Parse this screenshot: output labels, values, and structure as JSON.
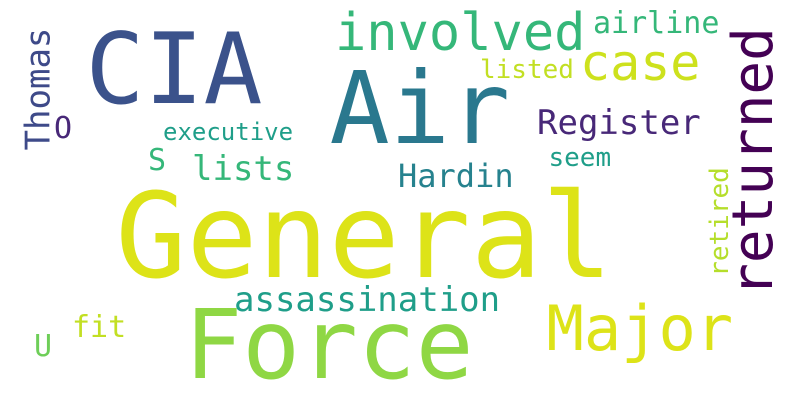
{
  "word_cloud": {
    "words": [
      {
        "id": "general",
        "text": "General",
        "color": "#dde318",
        "orientation": "horizontal"
      },
      {
        "id": "force",
        "text": "Force",
        "color": "#8fd744",
        "orientation": "horizontal"
      },
      {
        "id": "air",
        "text": "Air",
        "color": "#2a788e",
        "orientation": "horizontal"
      },
      {
        "id": "cia",
        "text": "CIA",
        "color": "#3b528b",
        "orientation": "horizontal"
      },
      {
        "id": "returned",
        "text": "returned",
        "color": "#440154",
        "orientation": "vertical"
      },
      {
        "id": "major",
        "text": "Major",
        "color": "#dde318",
        "orientation": "horizontal"
      },
      {
        "id": "involved",
        "text": "involved",
        "color": "#35b779",
        "orientation": "horizontal"
      },
      {
        "id": "case",
        "text": "case",
        "color": "#cde11d",
        "orientation": "horizontal"
      },
      {
        "id": "airline",
        "text": "airline",
        "color": "#35b779",
        "orientation": "horizontal"
      },
      {
        "id": "listed",
        "text": "listed",
        "color": "#c2df23",
        "orientation": "horizontal"
      },
      {
        "id": "thomas",
        "text": "Thomas",
        "color": "#3e4a89",
        "orientation": "vertical"
      },
      {
        "id": "register",
        "text": "Register",
        "color": "#482878",
        "orientation": "horizontal"
      },
      {
        "id": "o",
        "text": "O",
        "color": "#482878",
        "orientation": "horizontal"
      },
      {
        "id": "executive",
        "text": "executive",
        "color": "#1f9e89",
        "orientation": "horizontal"
      },
      {
        "id": "s",
        "text": "S",
        "color": "#35b779",
        "orientation": "horizontal"
      },
      {
        "id": "lists",
        "text": "lists",
        "color": "#35b779",
        "orientation": "horizontal"
      },
      {
        "id": "seem",
        "text": "seem",
        "color": "#1f9e89",
        "orientation": "horizontal"
      },
      {
        "id": "hardin",
        "text": "Hardin",
        "color": "#26828e",
        "orientation": "horizontal"
      },
      {
        "id": "retired",
        "text": "retired",
        "color": "#b5de2b",
        "orientation": "vertical"
      },
      {
        "id": "assassination",
        "text": "assassination",
        "color": "#1f9e89",
        "orientation": "horizontal"
      },
      {
        "id": "fit",
        "text": "fit",
        "color": "#c2df23",
        "orientation": "horizontal"
      },
      {
        "id": "u",
        "text": "U",
        "color": "#6ece58",
        "orientation": "horizontal"
      }
    ]
  }
}
